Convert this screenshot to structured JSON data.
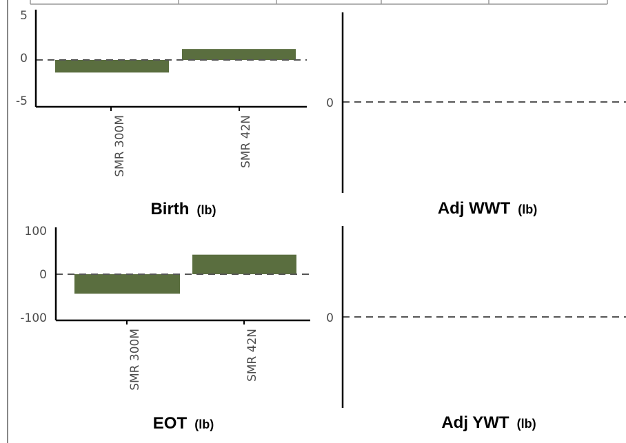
{
  "chart_data": [
    {
      "type": "bar",
      "title": "Birth",
      "unit": "(lb)",
      "categories": [
        "SMR 300M",
        "SMR 42N"
      ],
      "values": [
        -1.5,
        1.3
      ],
      "ylim": [
        -5,
        5
      ],
      "yticks": [
        "5",
        "0",
        "-5"
      ],
      "grid": false,
      "zero_line": "dashed"
    },
    {
      "type": "bar",
      "title": "Adj WWT",
      "unit": "(lb)",
      "categories": [],
      "values": [],
      "yticks": [
        "0"
      ],
      "grid": false,
      "zero_line": "dashed"
    },
    {
      "type": "bar",
      "title": "EOT",
      "unit": "(lb)",
      "categories": [
        "SMR 300M",
        "SMR 42N"
      ],
      "values": [
        -45,
        45
      ],
      "ylim": [
        -100,
        100
      ],
      "yticks": [
        "100",
        "0",
        "-100"
      ],
      "grid": false,
      "zero_line": "dashed"
    },
    {
      "type": "bar",
      "title": "Adj YWT",
      "unit": "(lb)",
      "categories": [],
      "values": [],
      "yticks": [
        "0"
      ],
      "grid": false,
      "zero_line": "dashed"
    }
  ],
  "colors": {
    "bar": "#5a6e3f",
    "axis": "#000000",
    "zero_line": "#555555",
    "tick_text": "#4d4d4d",
    "table_border": "#999999",
    "frame_border": "#888888"
  }
}
